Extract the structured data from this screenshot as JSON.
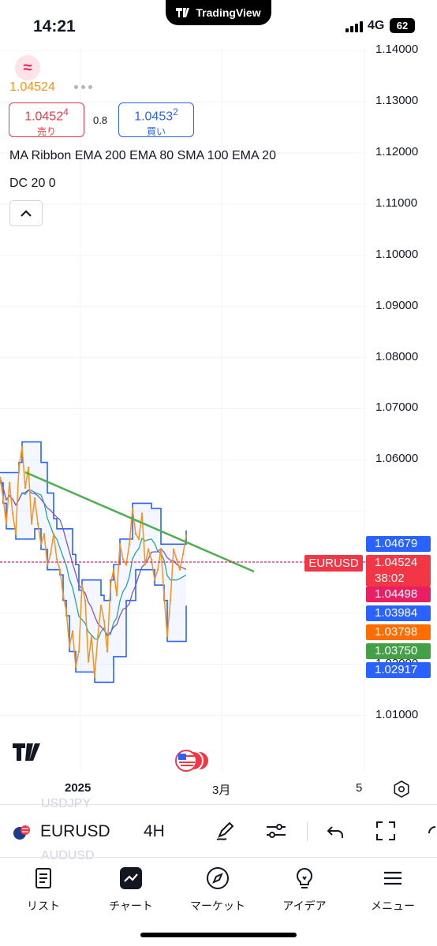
{
  "status": {
    "time": "14:21",
    "app_pill": "TradingView",
    "network": "4G",
    "battery": "62"
  },
  "header": {
    "last_price": "1.04524",
    "sell": {
      "price_main": "1.0452",
      "price_sup": "4",
      "label": "売り"
    },
    "spread": "0.8",
    "buy": {
      "price_main": "1.0453",
      "price_sup": "2",
      "label": "買い"
    },
    "indicator_line1": "MA Ribbon EMA 200 EMA 80 SMA 100 EMA 20",
    "indicator_line2": "DC 20 0"
  },
  "price_axis": [
    "1.14000",
    "1.13000",
    "1.12000",
    "1.11000",
    "1.10000",
    "1.09000",
    "1.08000",
    "1.07000",
    "1.06000",
    "1.01000",
    "1.02000"
  ],
  "price_tags": [
    {
      "value": "1.04679",
      "color": "#2962ff"
    },
    {
      "value": "1.04524",
      "sub": "38:02",
      "color": "#f23645"
    },
    {
      "value": "1.04498",
      "color": "#e91e63"
    },
    {
      "value": "1.03984",
      "color": "#2962ff"
    },
    {
      "value": "1.03798",
      "color": "#ff6d00"
    },
    {
      "value": "1.03750",
      "color": "#43a047"
    },
    {
      "value": "1.02917",
      "color": "#2962ff"
    }
  ],
  "symbol_tag": "EURUSD",
  "time_axis": [
    "2025",
    "3月",
    "5"
  ],
  "toolbar": {
    "ghost_above": "USDJPY",
    "ghost_below": "AUDUSD",
    "symbol": "EURUSD",
    "timeframe": "4H"
  },
  "tabs": [
    {
      "label": "リスト",
      "icon": "list-icon"
    },
    {
      "label": "チャート",
      "icon": "chart-icon"
    },
    {
      "label": "マーケット",
      "icon": "compass-icon"
    },
    {
      "label": "アイデア",
      "icon": "lightbulb-icon"
    },
    {
      "label": "メニュー",
      "icon": "menu-icon"
    }
  ],
  "colors": {
    "ask": "#f23645",
    "bid": "#2962ff",
    "price_line": "#f7931a",
    "trend_line": "#4caf50",
    "donchian": "#2962ff"
  },
  "chart_data": {
    "type": "line",
    "symbol": "EURUSD",
    "interval": "4H",
    "ylim": [
      1.005,
      1.145
    ],
    "x": [
      0,
      4,
      8,
      12,
      16,
      20,
      24,
      28,
      32,
      36,
      40,
      44,
      48,
      52,
      56,
      60,
      64,
      68,
      72,
      76,
      80,
      84,
      88,
      92,
      96,
      100,
      104,
      108,
      112,
      116,
      120,
      124,
      128,
      132,
      136,
      140,
      144,
      148,
      152,
      156,
      160,
      164,
      168,
      172,
      176,
      180,
      184,
      188,
      192,
      196,
      200,
      204,
      208,
      212,
      216,
      220,
      224,
      228,
      232,
      236
    ],
    "series": [
      {
        "name": "",
        "values": [
          1.0565,
          1.0525,
          1.0475,
          1.0555,
          1.0495,
          1.0455,
          1.0585,
          1.0625,
          1.0545,
          1.0585,
          1.0475,
          1.0525,
          1.0475,
          1.0435,
          1.0455,
          1.0395,
          1.0415,
          1.0455,
          1.0405,
          1.0385,
          1.0335,
          1.0305,
          1.0235,
          1.0265,
          1.0195,
          1.0225,
          1.0355,
          1.0325,
          1.0205,
          1.0255,
          1.0175,
          1.0255,
          1.0315,
          1.0285,
          1.0225,
          1.0355,
          1.0385,
          1.0335,
          1.0435,
          1.0405,
          1.0395,
          1.0435,
          1.0505,
          1.0455,
          1.0445,
          1.0495,
          1.0395,
          1.0425,
          1.0405,
          1.0365,
          1.0385,
          1.0425,
          1.0335,
          1.0255,
          1.0325,
          1.0425,
          1.0405,
          1.0385,
          1.0415,
          1.0452
        ]
      }
    ]
  }
}
